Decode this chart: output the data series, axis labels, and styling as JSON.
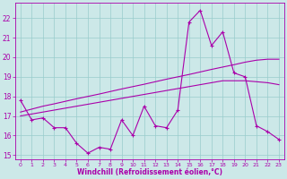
{
  "xlabel": "Windchill (Refroidissement éolien,°C)",
  "bg_color": "#cce8e8",
  "line_color": "#aa00aa",
  "grid_color": "#99cccc",
  "x": [
    0,
    1,
    2,
    3,
    4,
    5,
    6,
    7,
    8,
    9,
    10,
    11,
    12,
    13,
    14,
    15,
    16,
    17,
    18,
    19,
    20,
    21,
    22,
    23
  ],
  "y_data": [
    17.8,
    16.8,
    16.9,
    16.4,
    16.4,
    15.6,
    15.1,
    15.4,
    15.3,
    16.8,
    16.0,
    17.5,
    16.5,
    16.4,
    17.3,
    21.8,
    22.4,
    20.6,
    21.3,
    19.2,
    19.0,
    16.5,
    16.2,
    15.8
  ],
  "y_reg1": [
    17.2,
    17.35,
    17.5,
    17.62,
    17.75,
    17.88,
    18.0,
    18.12,
    18.25,
    18.38,
    18.5,
    18.62,
    18.75,
    18.88,
    19.0,
    19.12,
    19.25,
    19.38,
    19.5,
    19.62,
    19.75,
    19.85,
    19.9,
    19.9
  ],
  "y_reg2": [
    17.0,
    17.1,
    17.2,
    17.3,
    17.4,
    17.5,
    17.6,
    17.7,
    17.8,
    17.9,
    18.0,
    18.1,
    18.2,
    18.3,
    18.4,
    18.5,
    18.6,
    18.7,
    18.8,
    18.8,
    18.8,
    18.75,
    18.7,
    18.6
  ],
  "ylim": [
    14.8,
    22.8
  ],
  "yticks": [
    15,
    16,
    17,
    18,
    19,
    20,
    21,
    22
  ],
  "xticks": [
    0,
    1,
    2,
    3,
    4,
    5,
    6,
    7,
    8,
    9,
    10,
    11,
    12,
    13,
    14,
    15,
    16,
    17,
    18,
    19,
    20,
    21,
    22,
    23
  ],
  "figsize": [
    3.2,
    2.0
  ],
  "dpi": 100
}
